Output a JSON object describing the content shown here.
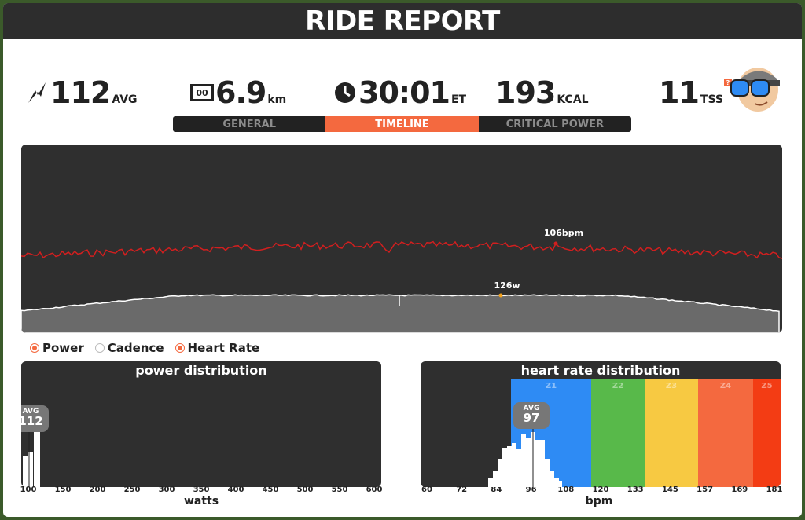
{
  "title": "RIDE REPORT",
  "stats": {
    "power": {
      "value": "112",
      "unit": "AVG",
      "icon": "lightning-icon"
    },
    "distance": {
      "value": "6.9",
      "unit": "km",
      "icon": "odometer-icon",
      "icon_text": "00"
    },
    "time": {
      "value": "30:01",
      "unit": "ET",
      "icon": "clock-icon"
    },
    "calories": {
      "value": "193",
      "unit": "KCAL"
    },
    "tss": {
      "value": "11",
      "unit": "TSS",
      "help": "?"
    }
  },
  "tabs": [
    {
      "label": "GENERAL",
      "active": false
    },
    {
      "label": "TIMELINE",
      "active": true
    },
    {
      "label": "CRITICAL POWER",
      "active": false
    }
  ],
  "timeline": {
    "hr_peak_label": "106bpm",
    "power_peak_label": "126w",
    "colors": {
      "heart_rate": "#d21f1f",
      "power_line": "#ffffff",
      "power_fill": "#6a6a6a",
      "marker": "#f4a21a"
    }
  },
  "legend": [
    {
      "label": "Power",
      "checked": true
    },
    {
      "label": "Cadence",
      "checked": false
    },
    {
      "label": "Heart Rate",
      "checked": true
    }
  ],
  "power_distribution": {
    "title": "power distribution",
    "avg_label": "AVG",
    "avg_value": "112",
    "x_ticks": [
      "100",
      "150",
      "200",
      "250",
      "300",
      "350",
      "400",
      "450",
      "500",
      "550",
      "600"
    ],
    "x_label": "watts"
  },
  "hr_distribution": {
    "title": "heart rate distribution",
    "avg_label": "AVG",
    "avg_value": "97",
    "zones": [
      {
        "label": "Z1",
        "color": "#2e8bf4"
      },
      {
        "label": "Z2",
        "color": "#58b94a"
      },
      {
        "label": "Z3",
        "color": "#f7c942"
      },
      {
        "label": "Z4",
        "color": "#f4693f"
      },
      {
        "label": "Z5",
        "color": "#f33c14"
      }
    ],
    "x_ticks": [
      "60",
      "72",
      "84",
      "96",
      "108",
      "120",
      "133",
      "145",
      "157",
      "169",
      "181"
    ],
    "x_label": "bpm"
  }
}
